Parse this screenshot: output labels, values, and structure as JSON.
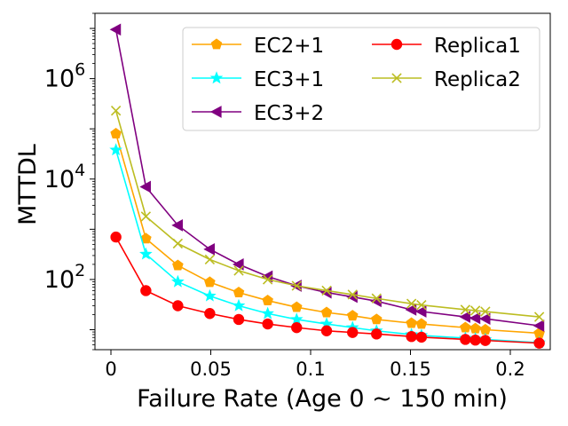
{
  "chart_data": {
    "type": "line",
    "yscale": "log",
    "xlabel": "Failure Rate (Age 0 ~ 150 min)",
    "ylabel": "MTTDL",
    "xlim": [
      -0.008,
      0.22
    ],
    "ylim": [
      4,
      20000000
    ],
    "x_ticks": [
      {
        "value": 0,
        "label": "0"
      },
      {
        "value": 0.05,
        "label": "0.05"
      },
      {
        "value": 0.1,
        "label": "0.1"
      },
      {
        "value": 0.15,
        "label": "0.15"
      },
      {
        "value": 0.2,
        "label": "0.2"
      }
    ],
    "y_ticks": [
      {
        "value": 100,
        "base": "10",
        "exp": "2"
      },
      {
        "value": 10000,
        "base": "10",
        "exp": "4"
      },
      {
        "value": 1000000,
        "base": "10",
        "exp": "6"
      }
    ],
    "x": [
      0.0025,
      0.0175,
      0.0335,
      0.0495,
      0.064,
      0.0785,
      0.093,
      0.108,
      0.121,
      0.133,
      0.1505,
      0.1555,
      0.1775,
      0.1825,
      0.1875,
      0.2145
    ],
    "series": [
      {
        "name": "EC2+1",
        "color": "#ffa500",
        "marker": "pentagon",
        "values": [
          80000,
          650,
          190,
          88,
          55,
          38,
          28,
          22,
          19,
          16,
          13.5,
          13,
          11,
          10.5,
          10,
          8.5
        ]
      },
      {
        "name": "EC3+1",
        "color": "#00ffff",
        "marker": "star",
        "values": [
          38000,
          320,
          90,
          47,
          30,
          21,
          16,
          13,
          11,
          9.5,
          8,
          7.7,
          6.8,
          6.6,
          6.4,
          5.5
        ]
      },
      {
        "name": "EC3+2",
        "color": "#800080",
        "marker": "triangle-left",
        "values": [
          9500000,
          7000,
          1200,
          400,
          200,
          115,
          75,
          55,
          45,
          37,
          25,
          23,
          18,
          17,
          16.5,
          12
        ]
      },
      {
        "name": "Replica1",
        "color": "#ff0000",
        "marker": "circle",
        "values": [
          700,
          60,
          30,
          21,
          16,
          13,
          11,
          9.5,
          8.8,
          8.2,
          7.3,
          7.1,
          6.4,
          6.2,
          6.1,
          5.4
        ]
      },
      {
        "name": "Replica2",
        "color": "#bcbd22",
        "marker": "x",
        "values": [
          230000,
          1800,
          520,
          250,
          150,
          100,
          75,
          60,
          50,
          42,
          33,
          31,
          25,
          24,
          23,
          18
        ]
      }
    ],
    "legend": {
      "placement": "top-right",
      "columns": 2,
      "order": [
        "EC2+1",
        "Replica1",
        "EC3+1",
        "Replica2",
        "EC3+2"
      ]
    }
  }
}
